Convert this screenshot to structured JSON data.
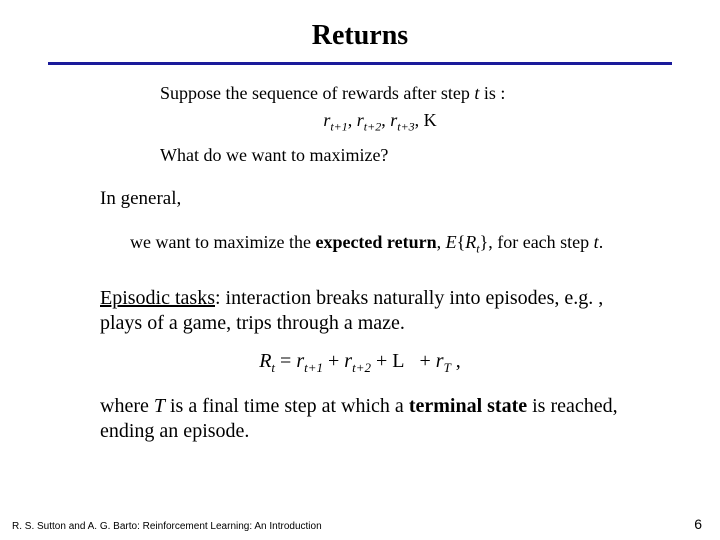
{
  "title": "Returns",
  "rule_color": "#1a1a9a",
  "line1_prefix": "Suppose the sequence of rewards after step ",
  "line1_var": "t",
  "line1_suffix": " is :",
  "seq_r": "r",
  "seq_sub1": "t+1",
  "seq_sub2": "t+2",
  "seq_sub3": "t+3",
  "seq_tail": ", K",
  "line2": "What do we want to maximize?",
  "line3": "In general,",
  "line4_a": "we want to maximize the ",
  "line4_b": "expected return",
  "line4_c": ", ",
  "line4_E": "E",
  "line4_Rt_r": "R",
  "line4_Rt_sub": "t",
  "line4_d": ", for each step ",
  "line4_e": "t",
  "line4_f": ".",
  "episodic_a": "Episodic tasks",
  "episodic_b": ": interaction breaks naturally into episodes, e.g. , plays of a game, trips through a maze.",
  "formula_R": "R",
  "formula_t": "t",
  "formula_r": "r",
  "formula_s1": "t+1",
  "formula_s2": "t+2",
  "formula_L": "L",
  "formula_sT": "T",
  "where_a": "where ",
  "where_T": "T",
  "where_b": " is a final time step at which a ",
  "where_c": "terminal state",
  "where_d": " is reached, ending an episode.",
  "footer": "R. S. Sutton and A. G. Barto: Reinforcement Learning: An Introduction",
  "pagenum": "6"
}
